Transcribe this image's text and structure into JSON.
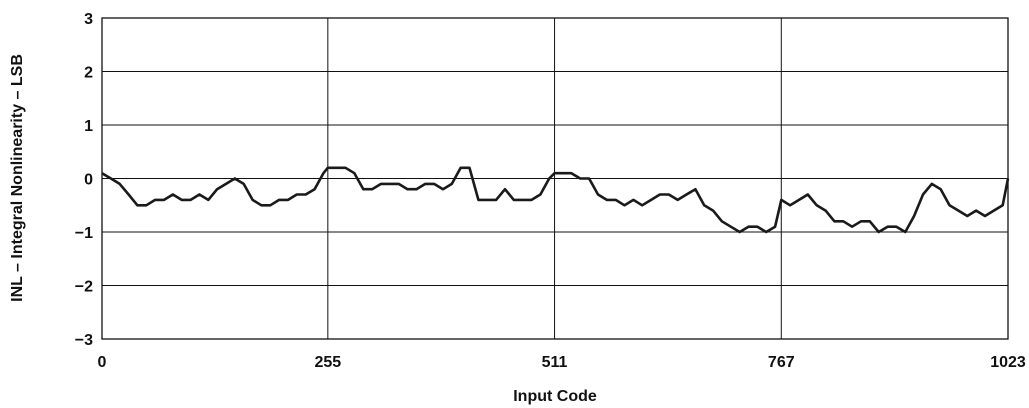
{
  "chart_data": {
    "type": "line",
    "title": "",
    "xlabel": "Input Code",
    "ylabel": "INL – Integral Nonlinearity – LSB",
    "xlim": [
      0,
      1023
    ],
    "ylim": [
      -3,
      3
    ],
    "grid": true,
    "x_ticks": [
      0,
      255,
      511,
      767,
      1023
    ],
    "x_tick_labels": [
      "0",
      "255",
      "511",
      "767",
      "1023"
    ],
    "y_ticks": [
      3,
      2,
      1,
      0,
      -1,
      -2,
      -3
    ],
    "y_tick_labels": [
      "3",
      "2",
      "1",
      "0",
      "−1",
      "−2",
      "−3"
    ],
    "series": [
      {
        "color": "#1a1a1a",
        "x": [
          0,
          10,
          20,
          30,
          40,
          50,
          60,
          70,
          80,
          90,
          100,
          110,
          120,
          130,
          140,
          150,
          160,
          170,
          180,
          190,
          200,
          210,
          220,
          230,
          240,
          250,
          255,
          265,
          275,
          285,
          295,
          305,
          315,
          325,
          335,
          345,
          355,
          365,
          375,
          385,
          395,
          405,
          415,
          425,
          435,
          445,
          455,
          465,
          475,
          485,
          495,
          505,
          511,
          520,
          530,
          540,
          550,
          560,
          570,
          580,
          590,
          600,
          610,
          620,
          630,
          640,
          650,
          660,
          670,
          680,
          690,
          700,
          710,
          720,
          730,
          740,
          750,
          760,
          767,
          777,
          787,
          797,
          807,
          817,
          827,
          837,
          847,
          857,
          867,
          877,
          887,
          897,
          907,
          917,
          927,
          937,
          947,
          957,
          967,
          977,
          987,
          997,
          1007,
          1017,
          1023
        ],
        "values": [
          0.1,
          0.0,
          -0.1,
          -0.3,
          -0.5,
          -0.5,
          -0.4,
          -0.4,
          -0.3,
          -0.4,
          -0.4,
          -0.3,
          -0.4,
          -0.2,
          -0.1,
          0.0,
          -0.1,
          -0.4,
          -0.5,
          -0.5,
          -0.4,
          -0.4,
          -0.3,
          -0.3,
          -0.2,
          0.1,
          0.2,
          0.2,
          0.2,
          0.1,
          -0.2,
          -0.2,
          -0.1,
          -0.1,
          -0.1,
          -0.2,
          -0.2,
          -0.1,
          -0.1,
          -0.2,
          -0.1,
          0.2,
          0.2,
          -0.4,
          -0.4,
          -0.4,
          -0.2,
          -0.4,
          -0.4,
          -0.4,
          -0.3,
          0.0,
          0.1,
          0.1,
          0.1,
          0.0,
          0.0,
          -0.3,
          -0.4,
          -0.4,
          -0.5,
          -0.4,
          -0.5,
          -0.4,
          -0.3,
          -0.3,
          -0.4,
          -0.3,
          -0.2,
          -0.5,
          -0.6,
          -0.8,
          -0.9,
          -1.0,
          -0.9,
          -0.9,
          -1.0,
          -0.9,
          -0.4,
          -0.5,
          -0.4,
          -0.3,
          -0.5,
          -0.6,
          -0.8,
          -0.8,
          -0.9,
          -0.8,
          -0.8,
          -1.0,
          -0.9,
          -0.9,
          -1.0,
          -0.7,
          -0.3,
          -0.1,
          -0.2,
          -0.5,
          -0.6,
          -0.7,
          -0.6,
          -0.7,
          -0.6,
          -0.5,
          0.0
        ]
      }
    ]
  }
}
